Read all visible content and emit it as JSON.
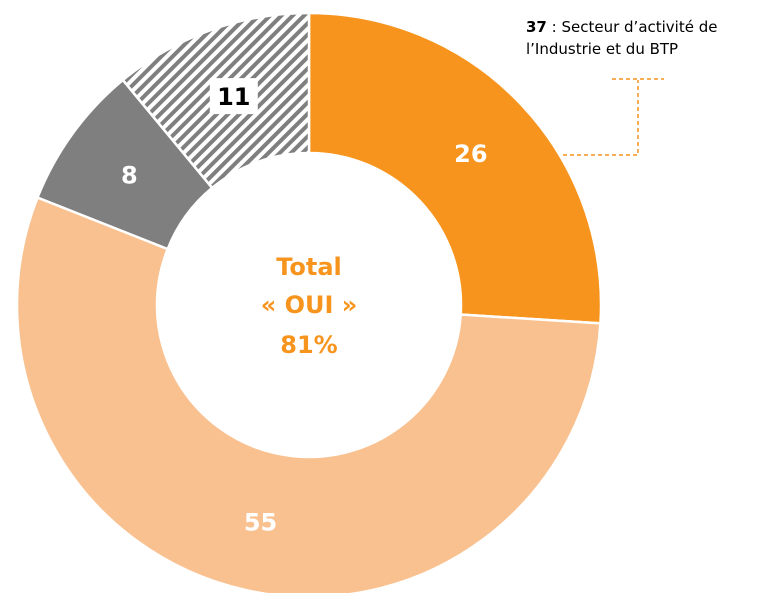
{
  "chart_data": {
    "type": "donut",
    "values": [
      26,
      55,
      8,
      11
    ],
    "colors": [
      "#F7941D",
      "#F9C18F",
      "#7F7F7F",
      "#7F7F7F"
    ],
    "patterns": [
      null,
      null,
      null,
      "hatch"
    ],
    "center_label": [
      "Total",
      "« OUI »",
      "81%"
    ],
    "annotation": {
      "value": 37,
      "text": ": Secteur d’activité de l’Industrie et du BTP"
    }
  }
}
